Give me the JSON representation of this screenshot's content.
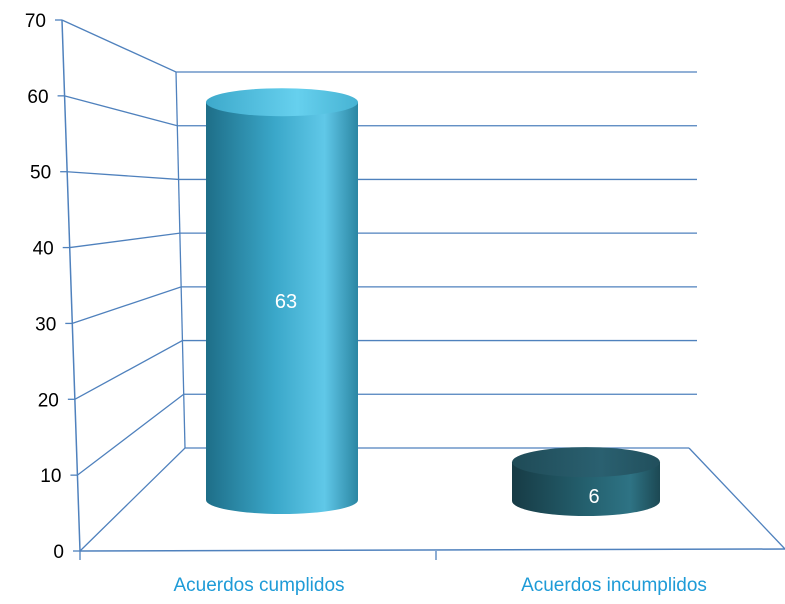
{
  "chart_data": {
    "type": "bar",
    "style": "3d-cylinder",
    "categories": [
      "Acuerdos cumplidos",
      "Acuerdos incumplidos"
    ],
    "values": [
      63,
      6
    ],
    "data_labels": [
      "63",
      "6"
    ],
    "ylim": [
      0,
      70
    ],
    "yticks": [
      0,
      10,
      20,
      30,
      40,
      50,
      60,
      70
    ],
    "ytick_labels": [
      "0",
      "10",
      "20",
      "30",
      "40",
      "50",
      "60",
      "70"
    ],
    "grid": true,
    "legend": "none",
    "colors": {
      "bar_1": "#2E90B0",
      "bar_2": "#1F4E5A",
      "grid": "#4F81BD",
      "category_text": "#1E9BD7",
      "tick_text": "#000000"
    }
  }
}
